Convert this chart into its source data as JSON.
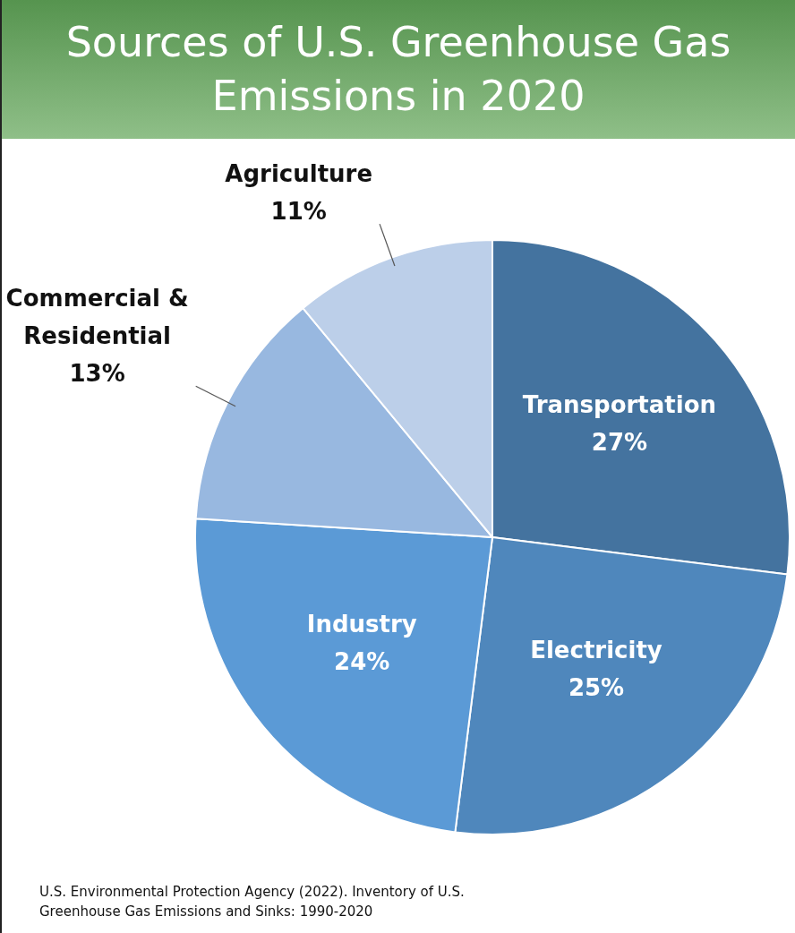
{
  "chart_data": {
    "type": "pie",
    "title": "Sources of U.S. Greenhouse Gas Emissions in 2020",
    "categories": [
      "Transportation",
      "Electricity",
      "Industry",
      "Commercial & Residential",
      "Agriculture"
    ],
    "values": [
      27,
      25,
      24,
      13,
      11
    ],
    "value_labels": [
      "27%",
      "25%",
      "24%",
      "13%",
      "11%"
    ],
    "colors": [
      "#44739f",
      "#4f87bc",
      "#5b9ad6",
      "#98b8e0",
      "#bccfe9"
    ],
    "legend": false,
    "annotations": [
      "U.S. Environmental Protection Agency (2022). Inventory of U.S. Greenhouse Gas Emissions and Sinks: 1990-2020"
    ]
  }
}
